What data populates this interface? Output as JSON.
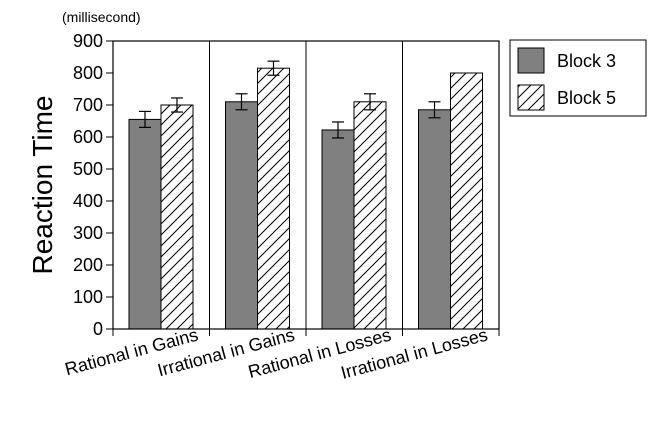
{
  "chart_data": {
    "type": "bar",
    "categories": [
      "Rational in Gains",
      "Irrational in Gains",
      "Rational in Losses",
      "Irrational in Losses"
    ],
    "series": [
      {
        "name": "Block 3",
        "values": [
          655,
          710,
          622,
          685
        ],
        "errors": [
          25,
          25,
          25,
          25
        ],
        "color": "#808080",
        "pattern": "solid"
      },
      {
        "name": "Block 5",
        "values": [
          700,
          815,
          710,
          800
        ],
        "errors": [
          22,
          22,
          25,
          0
        ],
        "color": "#ffffff",
        "pattern": "diagonal-hatch"
      }
    ],
    "ylabel": "Reaction Time",
    "yunit": "(millisecond)",
    "ylim": [
      0,
      900
    ],
    "yticks": [
      0,
      100,
      200,
      300,
      400,
      500,
      600,
      700,
      800,
      900
    ],
    "grid": "vertical-separators",
    "legend_position": "top-right"
  }
}
